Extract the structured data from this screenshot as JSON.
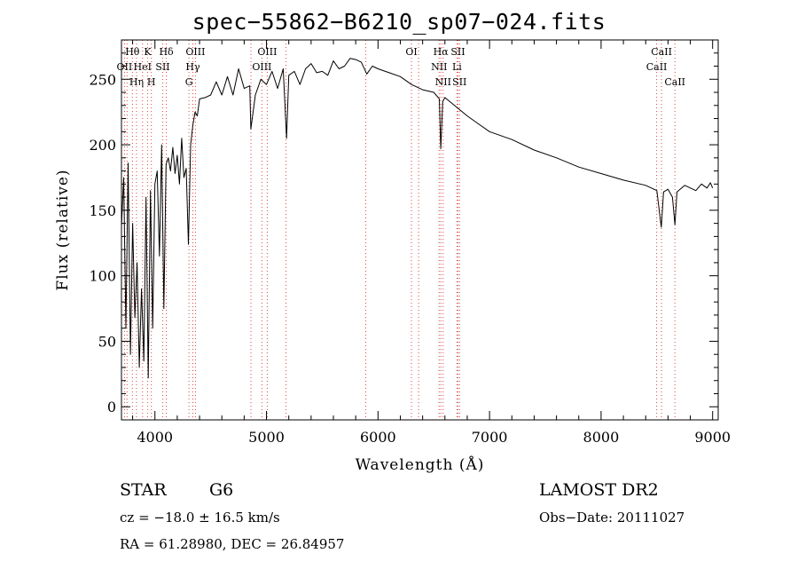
{
  "chart_data": {
    "type": "line",
    "title": "spec−55862−B6210_sp07−024.fits",
    "xlabel": "Wavelength (Å)",
    "ylabel": "Flux (relative)",
    "xlim": [
      3700,
      9050
    ],
    "ylim": [
      -10,
      280
    ],
    "xticks": [
      4000,
      5000,
      6000,
      7000,
      8000,
      9000
    ],
    "xtick_labels": [
      "4000",
      "5000",
      "6000",
      "7000",
      "8000",
      "9000"
    ],
    "yticks": [
      0,
      50,
      100,
      150,
      200,
      250
    ],
    "ytick_labels": [
      "0",
      "50",
      "100",
      "150",
      "200",
      "250"
    ],
    "grid": false,
    "legend": "none",
    "series": [
      {
        "x": [
          3700,
          3720,
          3740,
          3760,
          3780,
          3800,
          3820,
          3840,
          3860,
          3880,
          3900,
          3920,
          3940,
          3960,
          3980,
          4000,
          4020,
          4040,
          4060,
          4080,
          4100,
          4120,
          4140,
          4160,
          4180,
          4200,
          4220,
          4240,
          4260,
          4280,
          4300,
          4320,
          4340,
          4360,
          4380,
          4400,
          4450,
          4500,
          4550,
          4600,
          4650,
          4700,
          4750,
          4800,
          4850,
          4860,
          4900,
          4950,
          5000,
          5050,
          5100,
          5150,
          5180,
          5200,
          5250,
          5300,
          5350,
          5400,
          5450,
          5500,
          5550,
          5600,
          5650,
          5700,
          5750,
          5800,
          5850,
          5900,
          5950,
          6000,
          6100,
          6200,
          6300,
          6400,
          6500,
          6550,
          6563,
          6580,
          6600,
          6700,
          6800,
          6900,
          7000,
          7200,
          7400,
          7600,
          7800,
          8000,
          8200,
          8400,
          8500,
          8540,
          8560,
          8600,
          8640,
          8662,
          8680,
          8750,
          8800,
          8850,
          8900,
          8950,
          8980,
          9000
        ],
        "y": [
          138,
          175,
          60,
          186,
          40,
          140,
          68,
          110,
          30,
          90,
          35,
          160,
          22,
          165,
          60,
          170,
          180,
          115,
          200,
          75,
          185,
          190,
          180,
          198,
          178,
          192,
          170,
          205,
          175,
          182,
          124,
          200,
          215,
          225,
          222,
          235,
          236,
          238,
          248,
          238,
          252,
          238,
          258,
          243,
          245,
          212,
          238,
          250,
          246,
          256,
          243,
          258,
          205,
          253,
          256,
          246,
          258,
          262,
          255,
          256,
          253,
          264,
          258,
          260,
          266,
          265,
          263,
          254,
          260,
          258,
          255,
          252,
          246,
          242,
          240,
          235,
          197,
          233,
          236,
          229,
          222,
          216,
          210,
          204,
          196,
          190,
          183,
          178,
          173,
          169,
          165,
          137,
          164,
          166,
          160,
          139,
          164,
          169,
          167,
          165,
          170,
          167,
          171,
          167
        ]
      }
    ],
    "line_markers": [
      {
        "label": "Hθ",
        "x": 3798,
        "row": 1
      },
      {
        "label": "K",
        "x": 3934,
        "row": 1
      },
      {
        "label": "Hδ",
        "x": 4102,
        "row": 1
      },
      {
        "label": "OIII",
        "x": 4363,
        "row": 1
      },
      {
        "label": "OIII",
        "x": 5007,
        "row": 1
      },
      {
        "label": "OI",
        "x": 6300,
        "row": 1
      },
      {
        "label": "Hα",
        "x": 6563,
        "row": 1
      },
      {
        "label": "SII",
        "x": 6717,
        "row": 1
      },
      {
        "label": "CaII",
        "x": 8542,
        "row": 1
      },
      {
        "label": "OII",
        "x": 3727,
        "row": 2
      },
      {
        "label": "HeI",
        "x": 3889,
        "row": 2
      },
      {
        "label": "SII",
        "x": 4070,
        "row": 2
      },
      {
        "label": "Hγ",
        "x": 4340,
        "row": 2
      },
      {
        "label": "OIII",
        "x": 4959,
        "row": 2
      },
      {
        "label": "NII",
        "x": 6548,
        "row": 2
      },
      {
        "label": "Li",
        "x": 6708,
        "row": 2
      },
      {
        "label": "CaII",
        "x": 8498,
        "row": 2
      },
      {
        "label": "Hη",
        "x": 3835,
        "row": 3
      },
      {
        "label": "H",
        "x": 3968,
        "row": 3
      },
      {
        "label": "G",
        "x": 4305,
        "row": 3
      },
      {
        "label": "NII",
        "x": 6584,
        "row": 3
      },
      {
        "label": "SII",
        "x": 6731,
        "row": 3
      },
      {
        "label": "CaII",
        "x": 8662,
        "row": 3
      }
    ],
    "extra_marker_lines": [
      3750,
      4861,
      5175,
      5890,
      6364
    ]
  },
  "info": {
    "class_label": "STAR",
    "subclass": "G6",
    "survey": "LAMOST DR2",
    "redshift_line": "cz = −18.0 ± 16.5 km/s",
    "obs_date": "Obs−Date: 20111027",
    "coords": "RA =  61.28980, DEC =  26.84957"
  }
}
